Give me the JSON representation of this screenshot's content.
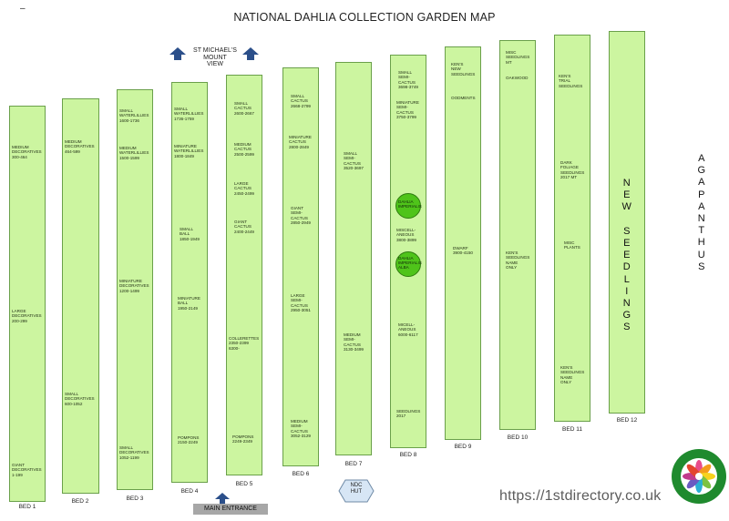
{
  "title": "NATIONAL DAHLIA COLLECTION GARDEN MAP",
  "corner_mark": "–",
  "view_label": "ST MICHAEL'S\nMOUNT\nVIEW",
  "entrance_label": "MAIN ENTRANCE",
  "hut_label": "NDC\nHUT",
  "watermark": "https://1stdirectory.co.uk",
  "logo": {
    "text_top": "National Dahlia Collection",
    "text_bottom": "Quality Guarantee",
    "ring_color": "#1f8a2e"
  },
  "colors": {
    "bed_fill": "#ccf5a0",
    "bed_border": "#6aa04a",
    "circle_fill": "#4fc41a",
    "entrance_bar": "#a7a7a7",
    "arrow": "#2b4f8a"
  },
  "beds": [
    {
      "name": "BED 1",
      "labels": [
        "MEDIUM\nDECORATIVES\n300-464",
        "LARGE\nDECORATIVES\n200-299",
        "GIANT\nDECORATIVES\n1-199"
      ]
    },
    {
      "name": "BED 2",
      "labels": [
        "MEDIUM\nDECORATIVES\n464-599",
        "SMALL\nDECORATIVES\n600-1052"
      ]
    },
    {
      "name": "BED 3",
      "labels": [
        "SMALL\nWATERLILLIES\n1600-1736",
        "MEDIUM\nWATERLILLIES\n1500-1599",
        "MINIATURE\nDECORATIVES\n1200-1499",
        "SMALL\nDECORATIVES\n1052-1199"
      ]
    },
    {
      "name": "BED 4",
      "labels": [
        "SMALL\nWATERLILLIES\n1736-1759",
        "MINIATURE\nWATERLILLIES\n1800-1849",
        "SMALL\nBALL\n1850-1949",
        "MINIATURE\nBALL\n1950-2149",
        "POMPONS\n2150-2249"
      ]
    },
    {
      "name": "BED 5",
      "labels": [
        "SMALL\nCACTUS\n2600-2667",
        "MEDIUM\nCACTUS\n2500-2599",
        "LARGE\nCACTUS\n2450-2499",
        "GIANT\nCACTUS\n2400-2449",
        "COLLERETTES\n2350-2399\n6300-",
        "POMPONS\n2249-2349"
      ]
    },
    {
      "name": "BED 6",
      "labels": [
        "SMALL\nCACTUS\n2668-2799",
        "MINIATURE\nCACTUS\n2800-2849",
        "GIANT\nSEMI-\nCACTUS\n2850-2949",
        "LARGE\nSEMI-\nCACTUS\n2950-3051",
        "MEDIUM\nSEMI-\nCACTUS\n3052-3129"
      ]
    },
    {
      "name": "BED 7",
      "labels": [
        "SMALL\nSEMI-\nCACTUS\n3520-3697",
        "MEDIUM\nSEMI-\nCACTUS\n3130-3499"
      ]
    },
    {
      "name": "BED 8",
      "labels": [
        "SMALL\nSEMI-\nCACTUS\n3698-3749",
        "MINIATURE\nSEMI-\nCACTUS\n3750-3799",
        "MISCELL-\nANEOUS\n3800-3899",
        "MICELL-\nANEOUS\n6000-6117",
        "SEEDLINGS\n2017"
      ],
      "circles": [
        "DAHLIA\nIMPERIALIS",
        "DAHLIA\nIMPERIALIS\nALBA"
      ]
    },
    {
      "name": "BED 9",
      "labels": [
        "KEN'S\nNEW\nSEEDLINGS",
        "OODMENTS",
        "DWARF\n3900-4150"
      ]
    },
    {
      "name": "BED 10",
      "labels": [
        "MISC\nSEEDLINGS\nMT",
        "OAKWOOD",
        "KEN'S\nSEEDLINGS\nNAME\nONLY"
      ]
    },
    {
      "name": "BED 11",
      "labels": [
        "KEN'S\nTRIAL\nSEEDLINGS",
        "DARK\nFOLIAGE\nSEEDLINGS\n2017 MT",
        "MISC\nPLANTS",
        "KEN'S\nSEEDLINGS\nNAME\nONLY"
      ]
    },
    {
      "name": "BED 12",
      "big_label": "N\nE\nW\n\nS\nE\nE\nD\nL\nI\nN\nG\nS"
    }
  ],
  "side_label": "A\nG\nA\nP\nA\nN\nT\nH\nU\nS"
}
